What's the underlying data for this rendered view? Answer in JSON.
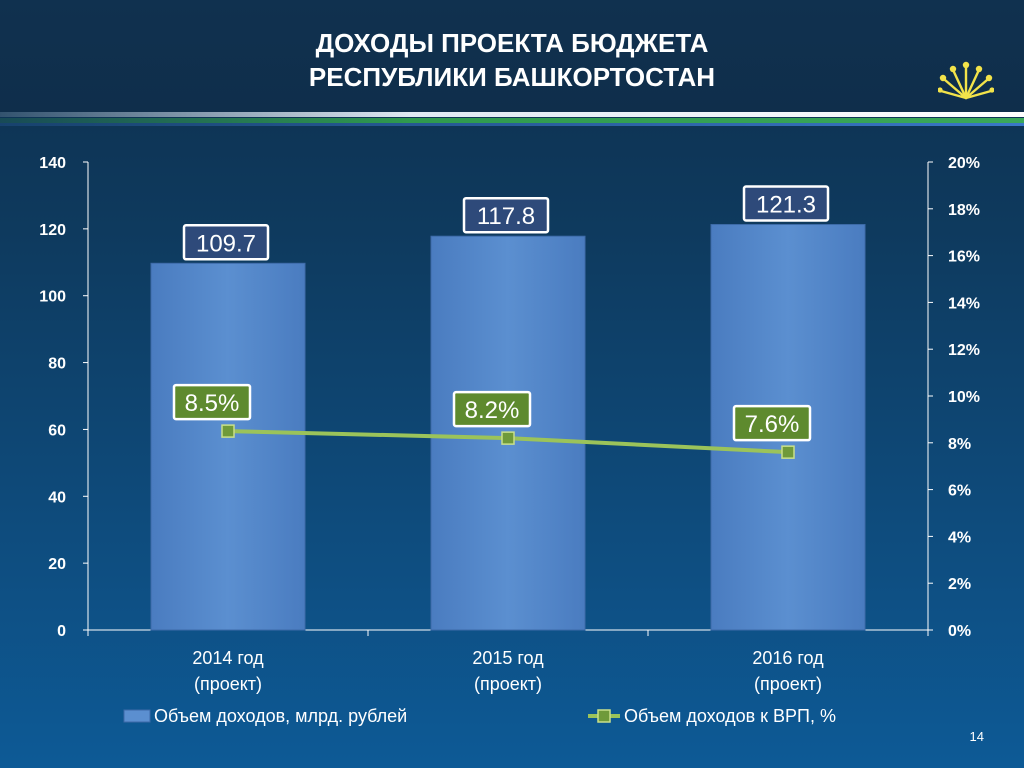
{
  "slide": {
    "title_line1": "ДОХОДЫ ПРОЕКТА БЮДЖЕТА",
    "title_line2": "РЕСПУБЛИКИ БАШКОРТОСТАН",
    "page_number": "14",
    "logo_icon": "kurai-flower-icon"
  },
  "colors": {
    "bar": "#5b8fd0",
    "line": "#9bc35a",
    "marker": "#6f9a3a",
    "bar_label_bg": "#2e4a7a",
    "line_label_bg": "#5e8a2e",
    "axis": "#ffffff"
  },
  "chart_data": {
    "type": "bar",
    "categories": [
      [
        "2014 год",
        "(проект)"
      ],
      [
        "2015 год",
        "(проект)"
      ],
      [
        "2016 год",
        "(проект)"
      ]
    ],
    "series": [
      {
        "name": "Объем доходов, млрд. рублей",
        "type": "bar",
        "axis": "left",
        "values": [
          109.7,
          117.8,
          121.3
        ],
        "labels": [
          "109.7",
          "117.8",
          "121.3"
        ]
      },
      {
        "name": "Объем доходов к ВРП, %",
        "type": "line",
        "axis": "right",
        "values": [
          8.5,
          8.2,
          7.6
        ],
        "labels": [
          "8.5%",
          "8.2%",
          "7.6%"
        ]
      }
    ],
    "y_left": {
      "min": 0,
      "max": 140,
      "ticks": [
        "0",
        "20",
        "40",
        "60",
        "80",
        "100",
        "120",
        "140"
      ]
    },
    "y_right": {
      "min": 0,
      "max": 20,
      "ticks": [
        "0%",
        "2%",
        "4%",
        "6%",
        "8%",
        "10%",
        "12%",
        "14%",
        "16%",
        "18%",
        "20%"
      ]
    },
    "legend_position": "bottom",
    "grid": false
  }
}
